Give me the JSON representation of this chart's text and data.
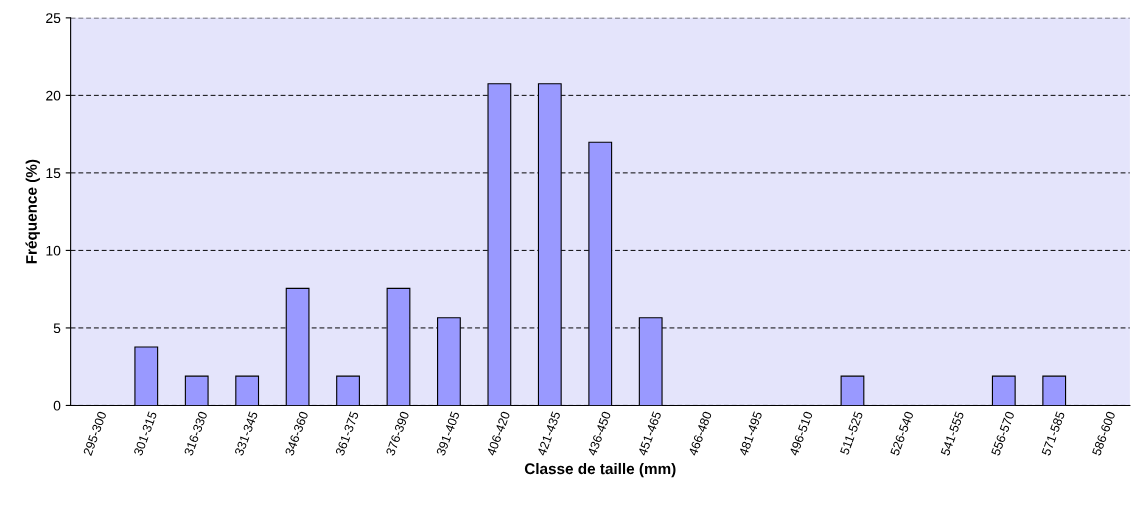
{
  "chart_data": {
    "type": "bar",
    "xlabel": "Classe de taille (mm)",
    "ylabel": "Fréquence (%)",
    "categories": [
      "295-300",
      "301-315",
      "316-330",
      "331-345",
      "346-360",
      "361-375",
      "376-390",
      "391-405",
      "406-420",
      "421-435",
      "436-450",
      "451-465",
      "466-480",
      "481-495",
      "496-510",
      "511-525",
      "526-540",
      "541-555",
      "556-570",
      "571-585",
      "586-600"
    ],
    "values": [
      0,
      3.77,
      1.89,
      1.89,
      7.55,
      1.89,
      7.55,
      5.66,
      20.75,
      20.75,
      16.98,
      5.66,
      0,
      0,
      0,
      1.89,
      0,
      0,
      1.89,
      1.89,
      0
    ],
    "color": "#9999ff",
    "ylim": [
      0,
      25
    ],
    "yticks": [
      0,
      5,
      10,
      15,
      20,
      25
    ],
    "grid": "y",
    "line_style": "dashed"
  }
}
